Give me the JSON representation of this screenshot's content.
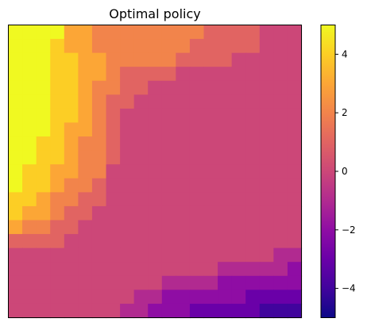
{
  "chart_data": {
    "type": "heatmap",
    "title": "Optimal policy",
    "colormap": "plasma",
    "vmin": -5,
    "vmax": 5,
    "colorbar": {
      "ticks": [
        4,
        2,
        0,
        -2,
        -4
      ],
      "tick_labels": [
        "4",
        "2",
        "0",
        "−2",
        "−4"
      ]
    },
    "grid": false,
    "rows": 21,
    "cols": 21,
    "values": [
      [
        5,
        5,
        5,
        5,
        3,
        3,
        2,
        2,
        2,
        2,
        2,
        2,
        2,
        2,
        1,
        1,
        1,
        1,
        0,
        0,
        0
      ],
      [
        5,
        5,
        5,
        4,
        3,
        3,
        2,
        2,
        2,
        2,
        2,
        2,
        2,
        1,
        1,
        1,
        1,
        1,
        0,
        0,
        0
      ],
      [
        5,
        5,
        5,
        4,
        4,
        3,
        3,
        2,
        2,
        2,
        2,
        2,
        1,
        1,
        1,
        1,
        0,
        0,
        0,
        0,
        0
      ],
      [
        5,
        5,
        5,
        4,
        4,
        3,
        3,
        2,
        1,
        1,
        1,
        1,
        0,
        0,
        0,
        0,
        0,
        0,
        0,
        0,
        0
      ],
      [
        5,
        5,
        5,
        4,
        4,
        3,
        2,
        2,
        1,
        1,
        0,
        0,
        0,
        0,
        0,
        0,
        0,
        0,
        0,
        0,
        0
      ],
      [
        5,
        5,
        5,
        4,
        4,
        3,
        2,
        1,
        1,
        0,
        0,
        0,
        0,
        0,
        0,
        0,
        0,
        0,
        0,
        0,
        0
      ],
      [
        5,
        5,
        5,
        4,
        4,
        3,
        2,
        1,
        0,
        0,
        0,
        0,
        0,
        0,
        0,
        0,
        0,
        0,
        0,
        0,
        0
      ],
      [
        5,
        5,
        5,
        4,
        3,
        3,
        2,
        1,
        0,
        0,
        0,
        0,
        0,
        0,
        0,
        0,
        0,
        0,
        0,
        0,
        0
      ],
      [
        5,
        5,
        4,
        4,
        3,
        2,
        2,
        1,
        0,
        0,
        0,
        0,
        0,
        0,
        0,
        0,
        0,
        0,
        0,
        0,
        0
      ],
      [
        5,
        5,
        4,
        4,
        3,
        2,
        2,
        1,
        0,
        0,
        0,
        0,
        0,
        0,
        0,
        0,
        0,
        0,
        0,
        0,
        0
      ],
      [
        5,
        4,
        4,
        3,
        3,
        2,
        2,
        0,
        0,
        0,
        0,
        0,
        0,
        0,
        0,
        0,
        0,
        0,
        0,
        0,
        0
      ],
      [
        5,
        4,
        4,
        3,
        2,
        2,
        1,
        0,
        0,
        0,
        0,
        0,
        0,
        0,
        0,
        0,
        0,
        0,
        0,
        0,
        0
      ],
      [
        4,
        4,
        3,
        2,
        2,
        1,
        1,
        0,
        0,
        0,
        0,
        0,
        0,
        0,
        0,
        0,
        0,
        0,
        0,
        0,
        0
      ],
      [
        4,
        3,
        3,
        2,
        1,
        1,
        0,
        0,
        0,
        0,
        0,
        0,
        0,
        0,
        0,
        0,
        0,
        0,
        0,
        0,
        0
      ],
      [
        3,
        2,
        2,
        1,
        1,
        0,
        0,
        0,
        0,
        0,
        0,
        0,
        0,
        0,
        0,
        0,
        0,
        0,
        0,
        0,
        0
      ],
      [
        1,
        1,
        1,
        1,
        0,
        0,
        0,
        0,
        0,
        0,
        0,
        0,
        0,
        0,
        0,
        0,
        0,
        0,
        0,
        0,
        0
      ],
      [
        0,
        0,
        0,
        0,
        0,
        0,
        0,
        0,
        0,
        0,
        0,
        0,
        0,
        0,
        0,
        0,
        0,
        0,
        0,
        -1,
        -1
      ],
      [
        0,
        0,
        0,
        0,
        0,
        0,
        0,
        0,
        0,
        0,
        0,
        0,
        0,
        0,
        0,
        -1,
        -1,
        -1,
        -1,
        -1,
        -2
      ],
      [
        0,
        0,
        0,
        0,
        0,
        0,
        0,
        0,
        0,
        0,
        0,
        -1,
        -1,
        -1,
        -1,
        -2,
        -2,
        -2,
        -2,
        -2,
        -2
      ],
      [
        0,
        0,
        0,
        0,
        0,
        0,
        0,
        0,
        0,
        -1,
        -1,
        -2,
        -2,
        -2,
        -2,
        -2,
        -2,
        -3,
        -3,
        -3,
        -3
      ],
      [
        0,
        0,
        0,
        0,
        0,
        0,
        0,
        0,
        -1,
        -1,
        -2,
        -2,
        -2,
        -3,
        -3,
        -3,
        -3,
        -3,
        -4,
        -4,
        -4
      ]
    ]
  }
}
